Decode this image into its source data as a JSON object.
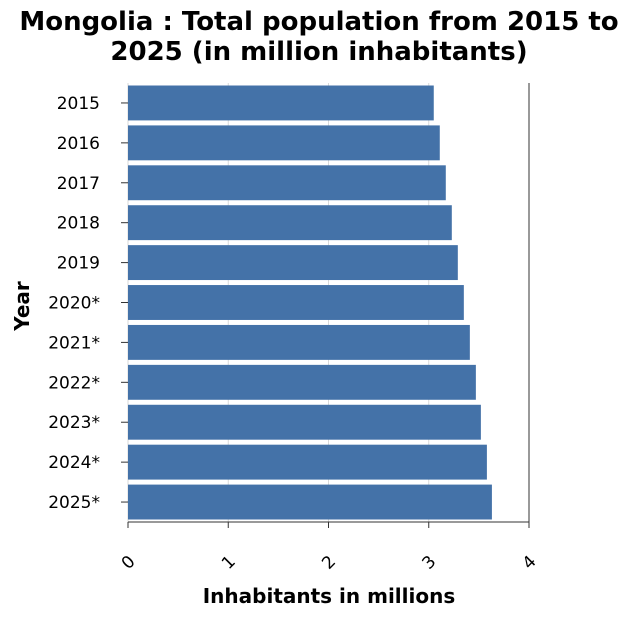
{
  "chart_data": {
    "type": "bar",
    "orientation": "horizontal",
    "title": "Mongolia : Total population from 2015 to 2025 (in million inhabitants)",
    "title_lines": [
      "Mongolia : Total population from 2015 to",
      "2025 (in million inhabitants)"
    ],
    "xlabel": "Inhabitants in millions",
    "ylabel": "Year",
    "categories": [
      "2015",
      "2016",
      "2017",
      "2018",
      "2019",
      "2020*",
      "2021*",
      "2022*",
      "2023*",
      "2024*",
      "2025*"
    ],
    "values": [
      3.05,
      3.11,
      3.17,
      3.23,
      3.29,
      3.35,
      3.41,
      3.47,
      3.52,
      3.58,
      3.63
    ],
    "xlim": [
      0,
      4
    ],
    "xticks": [
      0,
      1,
      2,
      3,
      4
    ],
    "grid": true,
    "legend": "none",
    "colors": {
      "bar": "#4472a8",
      "grid": "#d9d9d9",
      "axis": "#333333"
    }
  }
}
